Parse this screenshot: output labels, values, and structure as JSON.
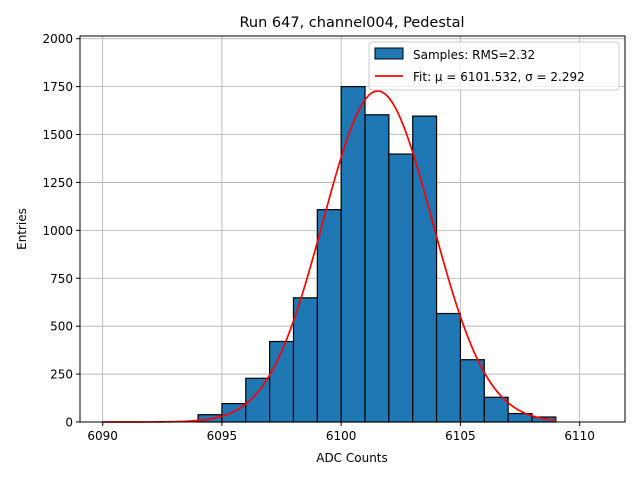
{
  "chart_data": {
    "type": "bar",
    "title": "Run 647, channel004, Pedestal",
    "xlabel": "ADC Counts",
    "ylabel": "Entries",
    "xlim": [
      6089.05,
      6111.9
    ],
    "ylim": [
      0,
      2014
    ],
    "xticks": [
      6090,
      6095,
      6100,
      6105,
      6110
    ],
    "yticks": [
      0,
      250,
      500,
      750,
      1000,
      1250,
      1500,
      1750,
      2000
    ],
    "grid": true,
    "legend_position": "top-right",
    "histogram": {
      "name": "Samples: RMS=2.32",
      "color": "#1f77b4",
      "bin_edges": [
        6094,
        6095,
        6096,
        6097,
        6098,
        6099,
        6100,
        6101,
        6102,
        6103,
        6104,
        6105,
        6106,
        6107,
        6108,
        6109
      ],
      "counts": [
        38,
        96,
        228,
        420,
        648,
        1108,
        1750,
        1603,
        1398,
        1596,
        566,
        325,
        129,
        44,
        26
      ]
    },
    "fit": {
      "name": "Fit: μ = 6101.532, σ = 2.292",
      "color": "#ff0000",
      "mu": 6101.532,
      "sigma": 2.292,
      "amplitude": 1727,
      "x_range": [
        6090,
        6109
      ]
    }
  }
}
